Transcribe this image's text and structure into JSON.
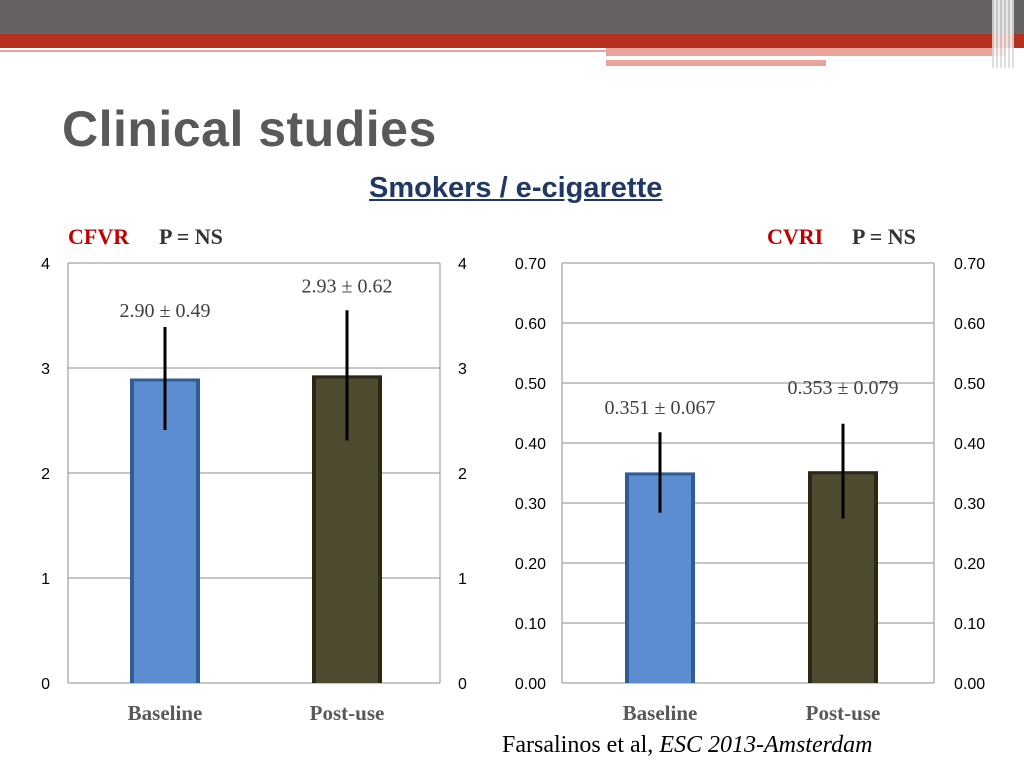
{
  "slide": {
    "title": "Clinical studies",
    "subtitle": "Smokers / e-cigarette",
    "citation_main": "Farsalinos et al,",
    "citation_italic": "ESC 2013-Amsterdam"
  },
  "labels": {
    "cfvr_name": "CFVR",
    "cfvr_p": "P = NS",
    "cvri_name": "CVRI",
    "cvri_p": "P = NS"
  },
  "colors": {
    "baseline": "#5b8dd0",
    "post_use": "#4d4a2f",
    "accent_red": "#c00000",
    "subtitle_blue": "#1f3864"
  },
  "chart_data": [
    {
      "type": "bar",
      "name": "CFVR",
      "categories": [
        "Baseline",
        "Post-use"
      ],
      "values": [
        2.9,
        2.93
      ],
      "errors": [
        0.49,
        0.62
      ],
      "data_labels": [
        "2.90 ± 0.49",
        "2.93 ± 0.62"
      ],
      "ylim": [
        0,
        4
      ],
      "yticks": [
        "0",
        "1",
        "2",
        "3",
        "4"
      ],
      "ytick_values": [
        0,
        1,
        2,
        3,
        4
      ],
      "secondary_axis": true,
      "grid": true
    },
    {
      "type": "bar",
      "name": "CVRI",
      "categories": [
        "Baseline",
        "Post-use"
      ],
      "values": [
        0.351,
        0.353
      ],
      "errors": [
        0.067,
        0.079
      ],
      "data_labels": [
        "0.351 ± 0.067",
        "0.353 ± 0.079"
      ],
      "ylim": [
        0,
        0.7
      ],
      "yticks": [
        "0.00",
        "0.10",
        "0.20",
        "0.30",
        "0.40",
        "0.50",
        "0.60",
        "0.70"
      ],
      "ytick_values": [
        0,
        0.1,
        0.2,
        0.3,
        0.4,
        0.5,
        0.6,
        0.7
      ],
      "secondary_axis": true,
      "grid": true
    }
  ]
}
